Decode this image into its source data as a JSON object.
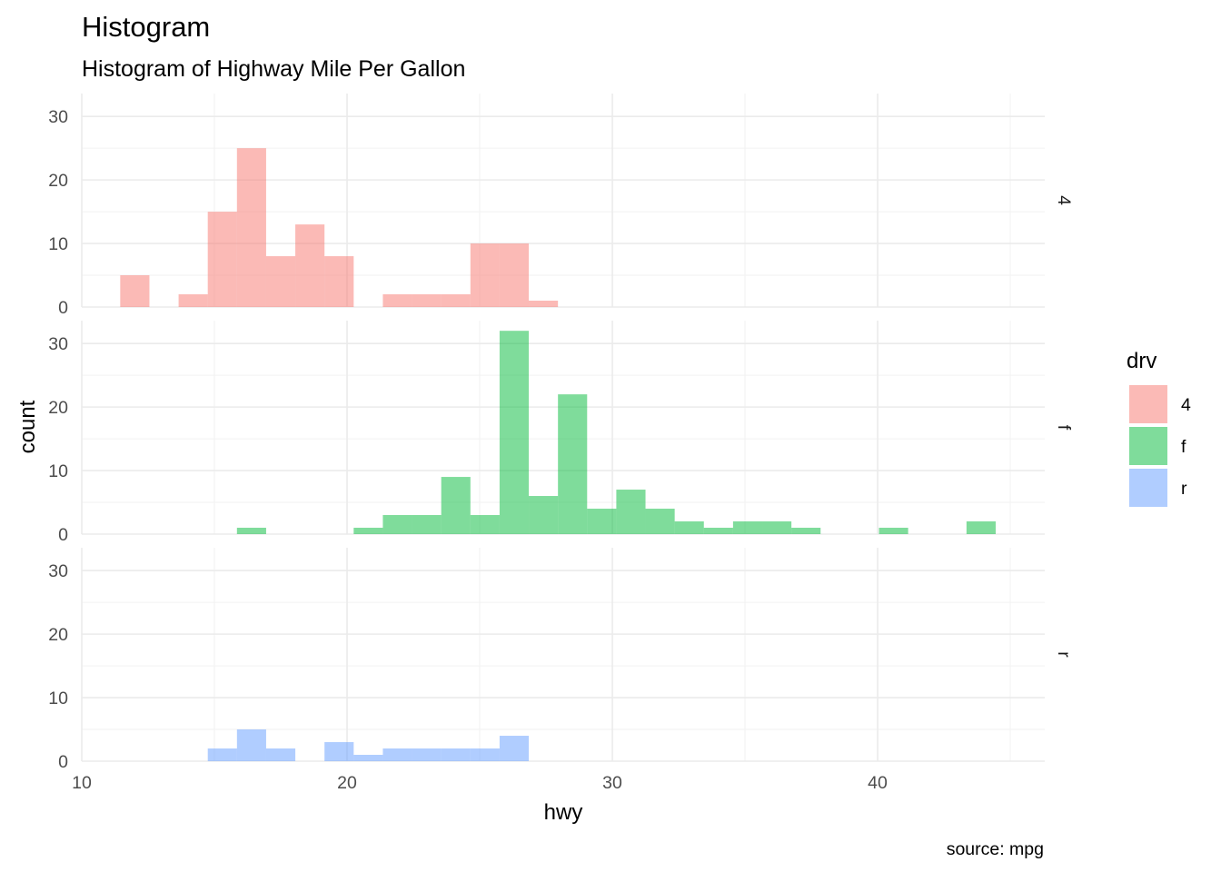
{
  "chart_data": {
    "type": "bar",
    "title": "Histogram",
    "subtitle": "Histogram of Highway Mile Per Gallon",
    "xlabel": "hwy",
    "ylabel": "count",
    "caption": "source: mpg",
    "facet_by": "drv",
    "xlim": [
      10,
      46.3
    ],
    "ylim": [
      0,
      33.6
    ],
    "x_ticks": [
      "10",
      "20",
      "30",
      "40"
    ],
    "y_ticks": [
      "0",
      "10",
      "20",
      "30"
    ],
    "bin_width": 1.1,
    "bin_starts": [
      11.45,
      12.55,
      13.65,
      14.75,
      15.85,
      16.95,
      18.05,
      19.15,
      20.25,
      21.35,
      22.45,
      23.55,
      24.65,
      25.75,
      26.85,
      27.95,
      29.05,
      30.15,
      31.25,
      32.35,
      33.45,
      34.55,
      35.65,
      36.75,
      37.85,
      38.95,
      40.05,
      41.15,
      42.25,
      43.35,
      44.45
    ],
    "legend": {
      "title": "drv",
      "position": "right"
    },
    "grid": true,
    "series": [
      {
        "name": "4",
        "color": "#F8766D",
        "values": [
          5,
          0,
          2,
          15,
          25,
          8,
          13,
          8,
          0,
          2,
          2,
          2,
          10,
          10,
          1,
          0,
          0,
          0,
          0,
          0,
          0,
          0,
          0,
          0,
          0,
          0,
          0,
          0,
          0,
          0,
          0
        ]
      },
      {
        "name": "f",
        "color": "#00BA38",
        "values": [
          0,
          0,
          0,
          0,
          1,
          0,
          0,
          0,
          1,
          3,
          3,
          9,
          3,
          32,
          6,
          22,
          4,
          7,
          4,
          2,
          1,
          2,
          2,
          1,
          0,
          0,
          1,
          0,
          0,
          2,
          0
        ]
      },
      {
        "name": "r",
        "color": "#619CFF",
        "values": [
          0,
          0,
          0,
          2,
          5,
          2,
          0,
          3,
          1,
          2,
          2,
          2,
          2,
          4,
          0,
          0,
          0,
          0,
          0,
          0,
          0,
          0,
          0,
          0,
          0,
          0,
          0,
          0,
          0,
          0,
          0
        ]
      }
    ]
  }
}
